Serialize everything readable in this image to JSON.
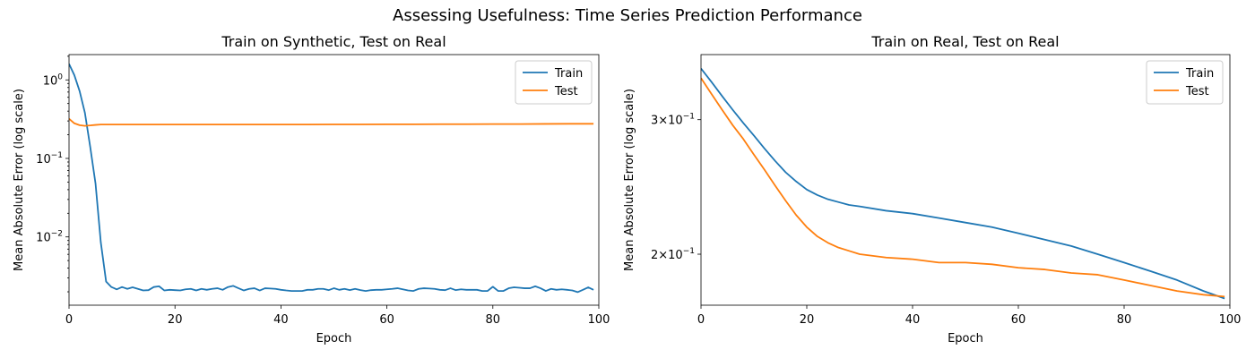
{
  "figure": {
    "suptitle": "Assessing Usefulness: Time Series Prediction Performance"
  },
  "colors": {
    "train": "#1f77b4",
    "test": "#ff7f0e"
  },
  "chart_data": [
    {
      "type": "line",
      "title": "Train on Synthetic, Test on Real",
      "xlabel": "Epoch",
      "ylabel": "Mean Absolute Error (log scale)",
      "yscale": "log",
      "xlim": [
        0,
        100
      ],
      "ylim": [
        0.00135,
        2.1
      ],
      "xticks": [
        0,
        20,
        40,
        60,
        80,
        100
      ],
      "yticks": [
        {
          "value": 1,
          "base": "10",
          "exp": "0"
        },
        {
          "value": 0.1,
          "base": "10",
          "exp": "−1"
        },
        {
          "value": 0.01,
          "base": "10",
          "exp": "−2"
        }
      ],
      "legend_position": "upper right",
      "series": [
        {
          "name": "Train",
          "color": "#1f77b4",
          "x": [
            0,
            1,
            2,
            3,
            4,
            5,
            6,
            7,
            8,
            9,
            10,
            11,
            12,
            13,
            14,
            15,
            16,
            17,
            18,
            19,
            20,
            21,
            22,
            23,
            24,
            25,
            26,
            27,
            28,
            29,
            30,
            31,
            32,
            33,
            34,
            35,
            36,
            37,
            38,
            39,
            40,
            41,
            42,
            43,
            44,
            45,
            46,
            47,
            48,
            49,
            50,
            51,
            52,
            53,
            54,
            55,
            56,
            57,
            58,
            59,
            60,
            61,
            62,
            63,
            64,
            65,
            66,
            67,
            68,
            69,
            70,
            71,
            72,
            73,
            74,
            75,
            76,
            77,
            78,
            79,
            80,
            81,
            82,
            83,
            84,
            85,
            86,
            87,
            88,
            89,
            90,
            91,
            92,
            93,
            94,
            95,
            96,
            97,
            98,
            99
          ],
          "values": [
            1.6,
            1.15,
            0.72,
            0.38,
            0.14,
            0.048,
            0.0085,
            0.0027,
            0.0023,
            0.00215,
            0.0023,
            0.00218,
            0.00228,
            0.00218,
            0.00208,
            0.0021,
            0.0023,
            0.00235,
            0.00208,
            0.00212,
            0.0021,
            0.00208,
            0.00215,
            0.00218,
            0.00208,
            0.00218,
            0.00212,
            0.00218,
            0.00222,
            0.00212,
            0.0023,
            0.00238,
            0.00222,
            0.00208,
            0.00218,
            0.00222,
            0.00208,
            0.00222,
            0.0022,
            0.00218,
            0.00212,
            0.00208,
            0.00205,
            0.00205,
            0.00205,
            0.00212,
            0.00212,
            0.00218,
            0.00218,
            0.0021,
            0.00222,
            0.00212,
            0.00218,
            0.0021,
            0.00218,
            0.0021,
            0.00205,
            0.0021,
            0.00212,
            0.00212,
            0.00215,
            0.00218,
            0.00222,
            0.00215,
            0.00208,
            0.00205,
            0.00218,
            0.00222,
            0.0022,
            0.00218,
            0.00212,
            0.0021,
            0.00222,
            0.0021,
            0.00215,
            0.00212,
            0.00212,
            0.00212,
            0.00205,
            0.00205,
            0.00232,
            0.00205,
            0.00205,
            0.00222,
            0.00228,
            0.00225,
            0.00222,
            0.00222,
            0.00235,
            0.00222,
            0.00205,
            0.00218,
            0.00212,
            0.00215,
            0.00212,
            0.00208,
            0.00198,
            0.00212,
            0.00228,
            0.00212
          ]
        },
        {
          "name": "Test",
          "color": "#ff7f0e",
          "x": [
            0,
            1,
            2,
            3,
            4,
            5,
            6,
            7,
            8,
            9,
            10,
            15,
            20,
            25,
            30,
            35,
            40,
            45,
            50,
            55,
            60,
            65,
            70,
            75,
            80,
            85,
            90,
            95,
            99
          ],
          "values": [
            0.32,
            0.28,
            0.265,
            0.26,
            0.263,
            0.267,
            0.27,
            0.27,
            0.27,
            0.27,
            0.27,
            0.27,
            0.27,
            0.27,
            0.27,
            0.27,
            0.27,
            0.27,
            0.271,
            0.271,
            0.272,
            0.272,
            0.273,
            0.273,
            0.274,
            0.274,
            0.275,
            0.276,
            0.276
          ]
        }
      ]
    },
    {
      "type": "line",
      "title": "Train on Real, Test on Real",
      "xlabel": "Epoch",
      "ylabel": "Mean Absolute Error (log scale)",
      "yscale": "log",
      "xlim": [
        0,
        100
      ],
      "ylim": [
        0.1715,
        0.365
      ],
      "xticks": [
        0,
        20,
        40,
        60,
        80,
        100
      ],
      "yticks": [
        {
          "value": 0.3,
          "base": "3×10",
          "exp": "−1"
        },
        {
          "value": 0.2,
          "base": "2×10",
          "exp": "−1"
        }
      ],
      "legend_position": "upper right",
      "series": [
        {
          "name": "Train",
          "color": "#1f77b4",
          "x": [
            0,
            2,
            4,
            6,
            8,
            10,
            12,
            14,
            16,
            18,
            20,
            22,
            24,
            26,
            28,
            30,
            35,
            40,
            45,
            50,
            55,
            60,
            65,
            70,
            75,
            80,
            85,
            90,
            95,
            99
          ],
          "values": [
            0.35,
            0.336,
            0.322,
            0.309,
            0.297,
            0.286,
            0.275,
            0.265,
            0.256,
            0.249,
            0.243,
            0.239,
            0.236,
            0.234,
            0.232,
            0.231,
            0.228,
            0.226,
            0.223,
            0.22,
            0.217,
            0.213,
            0.209,
            0.205,
            0.2,
            0.195,
            0.19,
            0.185,
            0.179,
            0.175
          ]
        },
        {
          "name": "Test",
          "color": "#ff7f0e",
          "x": [
            0,
            2,
            4,
            6,
            8,
            10,
            12,
            14,
            16,
            18,
            20,
            22,
            24,
            26,
            28,
            30,
            35,
            40,
            45,
            50,
            55,
            60,
            65,
            70,
            75,
            80,
            85,
            90,
            95,
            99
          ],
          "values": [
            0.34,
            0.324,
            0.309,
            0.295,
            0.283,
            0.27,
            0.258,
            0.246,
            0.235,
            0.225,
            0.217,
            0.211,
            0.207,
            0.204,
            0.202,
            0.2,
            0.198,
            0.197,
            0.195,
            0.195,
            0.194,
            0.192,
            0.191,
            0.189,
            0.188,
            0.185,
            0.182,
            0.179,
            0.177,
            0.176
          ]
        }
      ]
    }
  ]
}
